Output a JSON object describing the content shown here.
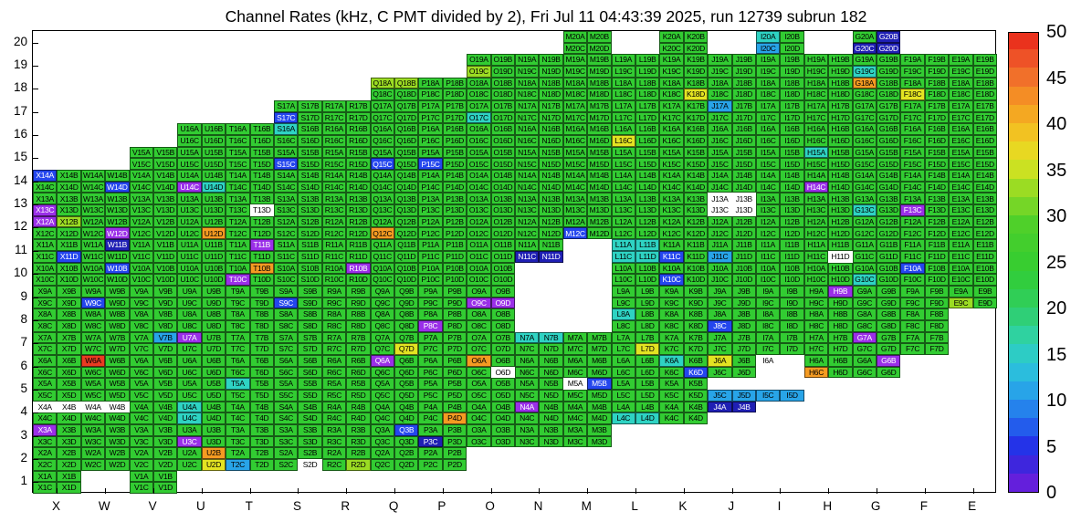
{
  "title": "Channel Rates (kHz, C PMT divided by 2), Fri Jul 11 04:43:39 2025, run 12739 subrun 182",
  "x_axis": {
    "labels": [
      "X",
      "W",
      "V",
      "U",
      "T",
      "S",
      "R",
      "Q",
      "P",
      "O",
      "N",
      "M",
      "L",
      "K",
      "J",
      "I",
      "H",
      "G",
      "F",
      "E"
    ]
  },
  "y_axis": {
    "labels": [
      "20",
      "19",
      "18",
      "17",
      "16",
      "15",
      "14",
      "13",
      "12",
      "11",
      "10",
      "9",
      "8",
      "7",
      "6",
      "5",
      "4",
      "3",
      "2",
      "1"
    ]
  },
  "colorbar": {
    "min": 0,
    "max": 50,
    "tick_values": [
      0,
      5,
      10,
      15,
      20,
      25,
      30,
      35,
      40,
      45,
      50
    ],
    "stops": [
      {
        "v": 0,
        "hex": "#7d1fe0"
      },
      {
        "v": 2,
        "hex": "#4b1fd8"
      },
      {
        "v": 5,
        "hex": "#2433e8"
      },
      {
        "v": 8,
        "hex": "#2371ee"
      },
      {
        "v": 11,
        "hex": "#28a4e8"
      },
      {
        "v": 14,
        "hex": "#2cc9d8"
      },
      {
        "v": 17,
        "hex": "#2fd2a0"
      },
      {
        "v": 20,
        "hex": "#2fce62"
      },
      {
        "v": 24,
        "hex": "#32cc32"
      },
      {
        "v": 29,
        "hex": "#4fd02a"
      },
      {
        "v": 33,
        "hex": "#9bdc23"
      },
      {
        "v": 36,
        "hex": "#e3e322"
      },
      {
        "v": 39,
        "hex": "#f2c222"
      },
      {
        "v": 42,
        "hex": "#f59b22"
      },
      {
        "v": 45,
        "hex": "#f1702a"
      },
      {
        "v": 48,
        "hex": "#ec4326"
      },
      {
        "v": 50,
        "hex": "#e82114"
      }
    ]
  },
  "chart_data": {
    "type": "heatmap",
    "title": "Channel Rates (kHz, C PMT divided by 2), Fri Jul 11 04:43:39 2025, run 12739 subrun 182",
    "unit": "kHz",
    "value_range": [
      0,
      50
    ],
    "columns": [
      "X",
      "W",
      "V",
      "U",
      "T",
      "S",
      "R",
      "Q",
      "P",
      "O",
      "N",
      "M",
      "L",
      "K",
      "J",
      "I",
      "H",
      "G",
      "F",
      "E"
    ],
    "subcells": [
      "A",
      "B",
      "C",
      "D"
    ],
    "cell_encoding": "Each entry is a column letter followed by 4 color codes for subcells A,B (top) and C,D (bottom); '.' means no channel drawn",
    "palette": {
      "g": {
        "name": "green",
        "hex": "#32cc32",
        "approx_kHz": 27
      },
      "e": {
        "name": "yellow-green",
        "hex": "#9bdc23",
        "approx_kHz": 33
      },
      "y": {
        "name": "yellow",
        "hex": "#e3e322",
        "approx_kHz": 36
      },
      "o": {
        "name": "orange",
        "hex": "#f59b22",
        "approx_kHz": 42
      },
      "r": {
        "name": "red",
        "hex": "#ea3b22",
        "approx_kHz": 48
      },
      "c": {
        "name": "cyan",
        "hex": "#2ed3c3",
        "approx_kHz": 16
      },
      "l": {
        "name": "light-blue",
        "hex": "#28a4e8",
        "approx_kHz": 11
      },
      "b": {
        "name": "blue",
        "hex": "#2446ee",
        "approx_kHz": 6
      },
      "d": {
        "name": "dark-blue",
        "hex": "#1f1fb4",
        "approx_kHz": 3
      },
      "v": {
        "name": "violet",
        "hex": "#9a2fe8",
        "approx_kHz": 1
      },
      "w": {
        "name": "white-no-rate",
        "hex": "#ffffff",
        "approx_kHz": 0
      }
    },
    "rows": [
      {
        "n": 20,
        "cells": [
          "Mgggg",
          "Kgggg",
          "Icglg",
          "Ggddd"
        ]
      },
      {
        "n": 19,
        "cells": [
          "Oggeg",
          "Ngggg",
          "Mgggg",
          "Lgggg",
          "Kgggg",
          "Jgggg",
          "Igggg",
          "Hgggg",
          "Gggcg",
          "Fgggg",
          "Egggg"
        ]
      },
      {
        "n": 18,
        "cells": [
          "Qeegg",
          "Pgggg",
          "Ogggg",
          "Ngggg",
          "Mgggg",
          "Lgggg",
          "Kgggy",
          "Jgggg",
          "Igggg",
          "Hgggg",
          "Goggg",
          "Fggyg",
          "Egggg"
        ]
      },
      {
        "n": 17,
        "cells": [
          "Sggbg",
          "Rgggg",
          "Qgggg",
          "Pgggg",
          "Oggcg",
          "Ngggg",
          "Mgggg",
          "Lgggg",
          "Kgggg",
          "Jlggg",
          "Igggg",
          "Hgggg",
          "Ggggg",
          "Fgggg",
          "Egggg"
        ]
      },
      {
        "n": 16,
        "cells": [
          "Ugggg",
          "Tgggg",
          "Scggg",
          "Rgggg",
          "Qgggg",
          "Pgggg",
          "Ogggg",
          "Ngggg",
          "Mgggg",
          "Lggyg",
          "Kgggg",
          "Jgggg",
          "Igggg",
          "Hgggg",
          "Ggggg",
          "Fgggg",
          "Egggg"
        ]
      },
      {
        "n": 15,
        "cells": [
          "Vgggg",
          "Ugggg",
          "Tgggg",
          "Sggbg",
          "Rgggg",
          "Qggbg",
          "Pggbg",
          "Ogggg",
          "Ngggg",
          "Mgggg",
          "Lgggg",
          "Kgggg",
          "Jgggg",
          "Igggg",
          "Hcggg",
          "Ggggg",
          "Fgggg",
          "Egggg"
        ]
      },
      {
        "n": 14,
        "cells": [
          "Xbggg",
          "Wgggb",
          "Vgggg",
          "Uggvc",
          "Tgggg",
          "Sgggg",
          "Rgggg",
          "Qgggg",
          "Pgggg",
          "Ogggg",
          "Ngggg",
          "Mgggg",
          "Lgggg",
          "Kgggg",
          "Jgggg",
          "Igggg",
          "Hggvg",
          "Ggggg",
          "Fgggg",
          "Egggg"
        ]
      },
      {
        "n": 13,
        "cells": [
          "Xggvg",
          "Wgggg",
          "Vgggg",
          "Ugggg",
          "Tgggw",
          "Sgggg",
          "Rgggg",
          "Qgggg",
          "Pgggg",
          "Ogggg",
          "Ngggg",
          "Mgggg",
          "Lgggg",
          "Kgggg",
          "Jwwww",
          "Igggg",
          "Hgggg",
          "Gggcg",
          "Fggvg",
          "Egggg"
        ]
      },
      {
        "n": 12,
        "cells": [
          "Xvegg",
          "Wgggv",
          "Vgggg",
          "Ugggo",
          "Tgggg",
          "Sgggg",
          "Rgggg",
          "Qggog",
          "Pgggg",
          "Ogggg",
          "Ngggg",
          "Mggbg",
          "Lgggg",
          "Kgggg",
          "Jgggg",
          "Igggg",
          "Hgggg",
          "Ggggg",
          "Fgggg",
          "Egggg"
        ]
      },
      {
        "n": 11,
        "cells": [
          "Xgggb",
          "Wgdgg",
          "Vgggg",
          "Ugggg",
          "Tgvgg",
          "Sgggg",
          "Rgggg",
          "Qgggg",
          "Pgggg",
          "Ogggg",
          "Nggdd",
          "Lcccc",
          "Kggbg",
          "Jgglg",
          "Igggg",
          "Hgggw",
          "Ggggg",
          "Fgggg",
          "Egggg"
        ]
      },
      {
        "n": 10,
        "cells": [
          "Xgggg",
          "Wgbgg",
          "Vgggg",
          "Ugggg",
          "Tgovg",
          "Sgggg",
          "Rgvgg",
          "Qgggg",
          "Pgggg",
          "Ogggg",
          "Lgggg",
          "Kggbg",
          "Jgggg",
          "Igggg",
          "Hgggg",
          "Gggcg",
          "Fbggg",
          "Egggg"
        ]
      },
      {
        "n": 9,
        "cells": [
          "Xgggg",
          "Wggbg",
          "Vgggg",
          "Ugggg",
          "Tgggg",
          "Sggbg",
          "Rgggg",
          "Qgggg",
          "Pgggg",
          "Oggvv",
          "Lgggg",
          "Kgggg",
          "Jgggg",
          "Igggg",
          "Hgvgg",
          "Ggggg",
          "Fgggg",
          "Eggeg"
        ]
      },
      {
        "n": 8,
        "cells": [
          "Xgggg",
          "Wgggg",
          "Vgggg",
          "Ugggg",
          "Tgggg",
          "Sgggg",
          "Rggg g",
          "Qgggg",
          "Pggvg",
          "Ogggg",
          "Lcggg",
          "Kgggg",
          "Jggbg",
          "Igggg",
          "Hgggg",
          "Ggggg",
          "Fgggg"
        ]
      },
      {
        "n": 7,
        "cells": [
          "Xgggg",
          "Wgggg",
          "Vglgg",
          "Uvggg",
          "Tgggg",
          "Sgggg",
          "Rgggg",
          "Qgggy",
          "Pgggg",
          "Ogggg",
          "Nccgg",
          "Mgggg",
          "Lgggy",
          "Kgggg",
          "Jgggg",
          "Igggg",
          "Hgggg",
          "Gvggg",
          "Fgggg"
        ]
      },
      {
        "n": 6,
        "cells": [
          "Xgggg",
          "Wrggg",
          "Vgggg",
          "Ugggg",
          "Tgggg",
          "Sgggg",
          "Rgggg",
          "Qvggg",
          "Pgggg",
          "Ooggw",
          "Ngggg",
          "Mgggg",
          "Lgggg",
          "Kcggb",
          "Jyggg",
          "Iw...",
          "Hggog",
          "Ggvgg"
        ]
      },
      {
        "n": 5,
        "cells": [
          "Xgggg",
          "Wgggg",
          "Vgggg",
          "Ugggg",
          "Tcggg",
          "Sgggg",
          "Rgggg",
          "Qgggg",
          "Pgggg",
          "Ogggg",
          "Ngggg",
          "Mwbgg",
          "Lgggg",
          "Kgggg",
          "J..ll",
          "I..ll"
        ]
      },
      {
        "n": 4,
        "cells": [
          "Xwwgg",
          "Wwwgg",
          "Vgggg",
          "Ucgcg",
          "Tgggg",
          "Sgggg",
          "Rgggg",
          "Qgggg",
          "Pgggo",
          "Ogggg",
          "Nvggg",
          "Mgggg",
          "Lggcc",
          "Kgggg",
          "Jdd.."
        ]
      },
      {
        "n": 3,
        "cells": [
          "Xvggg",
          "Wgggg",
          "Vgggg",
          "Uggvg",
          "Tgggg",
          "Sgggg",
          "Rgggg",
          "Qgbgg",
          "Pggdg",
          "Ogggg",
          "Ngggg",
          "Mgggg"
        ]
      },
      {
        "n": 2,
        "cells": [
          "Xgggg",
          "Wgggg",
          "Vgggg",
          "Ugogy",
          "Tgglg",
          "Sgggw",
          "Rggge",
          "Qgggg",
          "Pgggg"
        ]
      },
      {
        "n": 1,
        "cells": [
          "Xgggg",
          "Vgggg"
        ]
      }
    ]
  }
}
